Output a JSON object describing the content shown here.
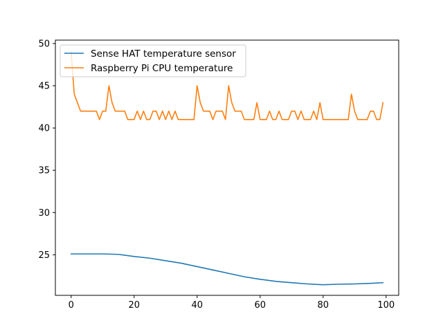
{
  "chart_data": {
    "type": "line",
    "title": "",
    "xlabel": "",
    "ylabel": "",
    "xlim": [
      -5,
      104
    ],
    "ylim": [
      20.2,
      50.4
    ],
    "xticks": [
      0,
      20,
      40,
      60,
      80,
      100
    ],
    "yticks": [
      25,
      30,
      35,
      40,
      45,
      50
    ],
    "grid": false,
    "legend_position": "top-left",
    "series": [
      {
        "name": "Sense HAT temperature sensor",
        "color": "#1f77b4",
        "x": [
          0,
          5,
          10,
          15,
          20,
          25,
          30,
          35,
          40,
          45,
          50,
          55,
          60,
          65,
          70,
          75,
          80,
          85,
          90,
          95,
          99
        ],
        "values": [
          25.1,
          25.1,
          25.1,
          25.05,
          24.8,
          24.6,
          24.3,
          24.0,
          23.6,
          23.2,
          22.8,
          22.4,
          22.1,
          21.85,
          21.7,
          21.55,
          21.45,
          21.52,
          21.55,
          21.62,
          21.7
        ]
      },
      {
        "name": "Raspberry Pi CPU temperature",
        "color": "#ff7f0e",
        "x": [
          0,
          1,
          2,
          3,
          4,
          5,
          6,
          7,
          8,
          9,
          10,
          11,
          12,
          13,
          14,
          15,
          16,
          17,
          18,
          19,
          20,
          21,
          22,
          23,
          24,
          25,
          26,
          27,
          28,
          29,
          30,
          31,
          32,
          33,
          34,
          35,
          36,
          37,
          38,
          39,
          40,
          41,
          42,
          43,
          44,
          45,
          46,
          47,
          48,
          49,
          50,
          51,
          52,
          53,
          54,
          55,
          56,
          57,
          58,
          59,
          60,
          61,
          62,
          63,
          64,
          65,
          66,
          67,
          68,
          69,
          70,
          71,
          72,
          73,
          74,
          75,
          76,
          77,
          78,
          79,
          80,
          81,
          82,
          83,
          84,
          85,
          86,
          87,
          88,
          89,
          90,
          91,
          92,
          93,
          94,
          95,
          96,
          97,
          98,
          99
        ],
        "values": [
          49,
          44,
          43,
          42,
          42,
          42,
          42,
          42,
          42,
          41,
          42,
          42,
          45,
          43,
          42,
          42,
          42,
          42,
          41,
          41,
          41,
          42,
          41,
          42,
          41,
          41,
          42,
          42,
          41,
          42,
          41,
          42,
          41,
          42,
          41,
          41,
          41,
          41,
          41,
          41,
          45,
          43,
          42,
          42,
          42,
          41,
          42,
          42,
          42,
          41,
          45,
          43,
          42,
          42,
          42,
          41,
          41,
          41,
          41,
          43,
          41,
          41,
          41,
          42,
          41,
          41,
          42,
          41,
          41,
          41,
          42,
          42,
          41,
          42,
          41,
          41,
          41,
          42,
          41,
          43,
          41,
          41,
          41,
          41,
          41,
          41,
          41,
          41,
          41,
          44,
          42,
          41,
          41,
          41,
          41,
          42,
          42,
          41,
          41,
          43
        ]
      }
    ]
  }
}
